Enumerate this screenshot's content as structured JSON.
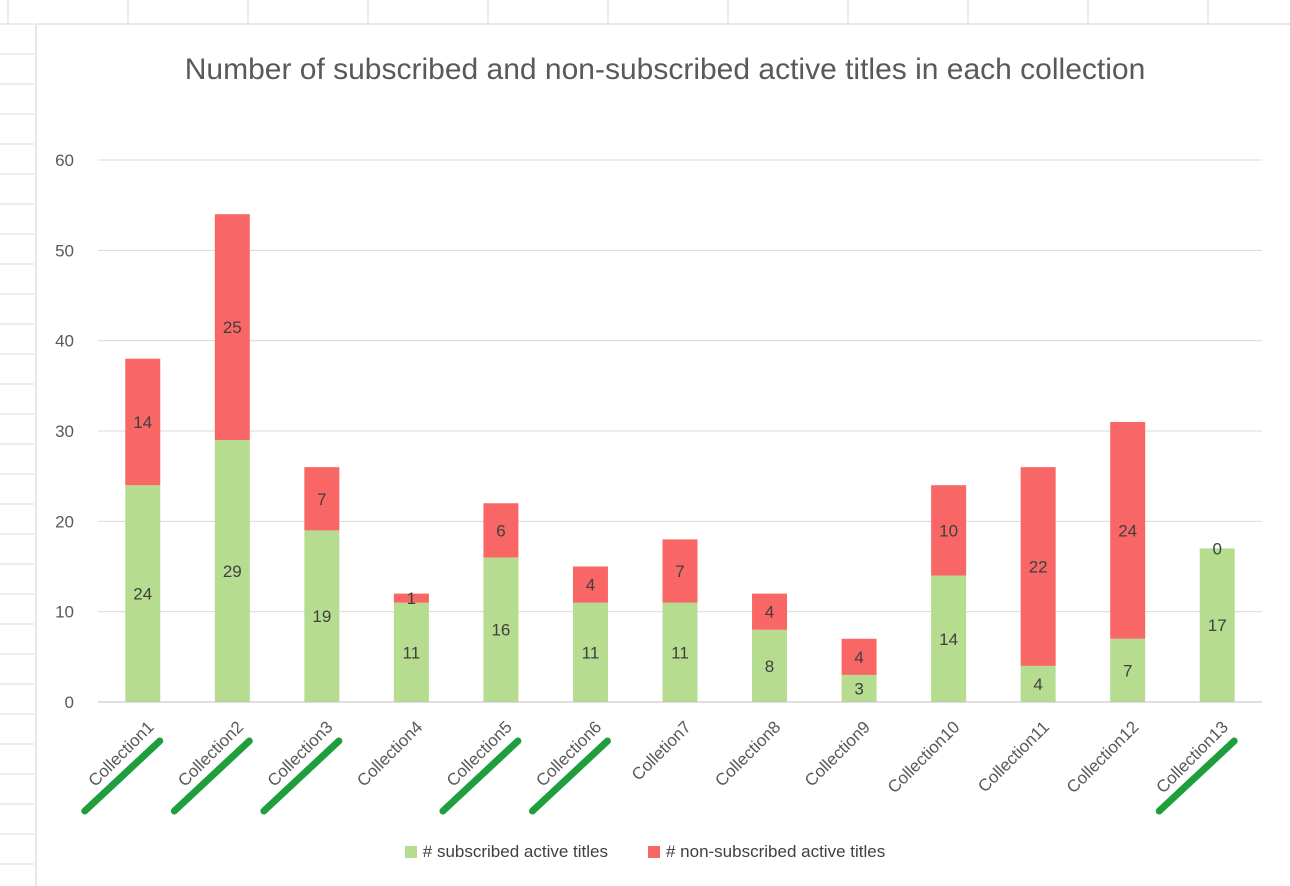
{
  "chart_data": {
    "type": "bar",
    "stacked": true,
    "title": "Number of subscribed and non-subscribed active titles in each collection",
    "categories": [
      "Collection1",
      "Collection2",
      "Collection3",
      "Collection4",
      "Collection5",
      "Collection6",
      "Colletion7",
      "Collection8",
      "Collection9",
      "Collection10",
      "Collection11",
      "Collection12",
      "Collection13"
    ],
    "series": [
      {
        "name": "# subscribed active titles",
        "color": "#b5dc8f",
        "values": [
          24,
          29,
          19,
          11,
          16,
          11,
          11,
          8,
          3,
          14,
          4,
          7,
          17
        ]
      },
      {
        "name": "# non-subscribed active titles",
        "color": "#f96666",
        "values": [
          14,
          25,
          7,
          1,
          6,
          4,
          7,
          4,
          4,
          10,
          22,
          24,
          0
        ]
      }
    ],
    "ylim": [
      0,
      60
    ],
    "yticks": [
      0,
      10,
      20,
      30,
      40,
      50,
      60
    ],
    "grid": true,
    "legend": "bottom",
    "annotations": "green strikethrough marks on Collection1, Collection2, Collection3, Collection5, Collection6, Collection13",
    "struck": [
      true,
      true,
      true,
      false,
      true,
      true,
      false,
      false,
      false,
      false,
      false,
      false,
      true
    ],
    "mark_color": "#1e9e3c"
  }
}
